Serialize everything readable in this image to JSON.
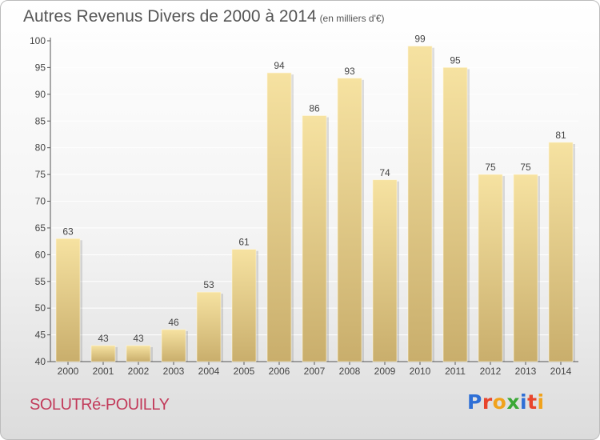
{
  "title": "Autres Revenus Divers de 2000 à 2014",
  "title_unit": "(en milliers d'€)",
  "commune": "SOLUTRé-POUILLY",
  "logo": {
    "text": "Proxiti",
    "colors": [
      "#2e6fd6",
      "#e8452c",
      "#f0a21c",
      "#3aa836",
      "#2e6fd6",
      "#e8452c",
      "#f0a21c"
    ]
  },
  "colors": {
    "bar_light": "#f6e2a1",
    "bar_dark": "#c9ae6c",
    "grid": "#ffffff",
    "commune": "#c23a5a"
  },
  "chart_data": {
    "type": "bar",
    "categories": [
      "2000",
      "2001",
      "2002",
      "2003",
      "2004",
      "2005",
      "2006",
      "2007",
      "2008",
      "2009",
      "2010",
      "2011",
      "2012",
      "2013",
      "2014"
    ],
    "values": [
      63,
      43,
      43,
      46,
      53,
      61,
      94,
      86,
      93,
      74,
      99,
      95,
      75,
      75,
      81
    ],
    "ylim": [
      40,
      100
    ],
    "yticks": [
      40,
      45,
      50,
      55,
      60,
      65,
      70,
      75,
      80,
      85,
      90,
      95,
      100
    ],
    "grid": true,
    "data_labels": true
  }
}
